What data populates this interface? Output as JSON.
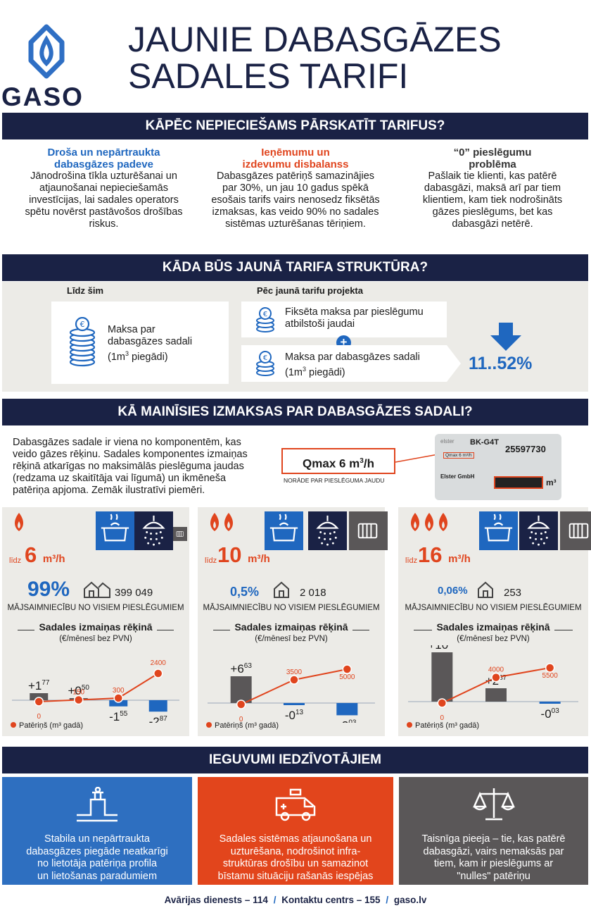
{
  "header": {
    "logo_text": "GASO",
    "title_line1": "JAUNIE DABASGĀZES",
    "title_line2": "SADALES TARIFI"
  },
  "section1": {
    "title": "KĀPĒC NEPIECIEŠAMS PĀRSKATĪT TARIFUS?",
    "cols": [
      {
        "heading": "Droša un nepārtraukta dabasgāzes padeve",
        "text": "Jānodrošina tīkla uzturēšanai un atjaunošanai nepieciešamās investīcijas, lai sadales operators spētu novērst pastāvošos drošības riskus.",
        "color": "#1f67bf"
      },
      {
        "heading": "Ieņēmumu un izdevumu disbalanss",
        "text": "Dabasgāzes patēriņš samazinājies par 30%, un jau 10 gadus spēkā esošais tarifs vairs nenosedz fiksētās izmaksas,  kas veido 90% no sadales sistēmas uzturēšanas tēriņiem.",
        "color": "#e0451e"
      },
      {
        "heading": "“0” pieslēgumu problēma",
        "text": "Pašlaik tie klienti, kas patērē dabasgāzi, maksā arī par tiem klientiem, kam tiek nodrošināts gāzes pieslēgums, bet kas dabasgāzi netērē.",
        "color": "#333333"
      }
    ]
  },
  "section2": {
    "title": "KĀDA BŪS JAUNĀ TARIFA STRUKTŪRA?",
    "left_label": "Līdz šim",
    "right_label": "Pēc jaunā tarifu projekta",
    "old_box": {
      "line1": "Maksa par",
      "line2": "dabasgāzes sadali",
      "line3a": "(1m",
      "line3sup": "3",
      "line3b": " piegādi)"
    },
    "new_box1": {
      "line1": "Fiksēta maksa par pieslēgumu",
      "line2": "atbilstoši jaudai"
    },
    "plus": "+",
    "new_box2": {
      "line1": "Maksa par dabasgāzes sadali",
      "line2a": "(1m",
      "line2sup": "3",
      "line2b": " piegādi)"
    },
    "reduction": "11..52%"
  },
  "section3": {
    "title": "KĀ MAINĪSIES IZMAKSAS PAR DABASGĀZES SADALI?",
    "intro": [
      "Dabasgāzes sadale ir viena no komponentēm, kas",
      "veido gāzes rēķinu. Sadales komponentes izmaiņas",
      "rēķinā atkarīgas no maksimālās pieslēguma jaudas",
      "(redzama uz skaitītāja vai līgumā) un ikmēneša",
      "patēriņa apjoma. Zemāk ilustratīvi piemēri."
    ],
    "qmax_a": "Qmax 6 m",
    "qmax_sup": "3",
    "qmax_b": "/h",
    "qmax_note": "NORĀDE PAR PIESLĒGUMA JAUDU",
    "meter": {
      "brand": "elster",
      "model": "BK-G4T",
      "serial": "25597730",
      "qmax": "Qmax 6 m³/h",
      "maker": "Elster GmbH",
      "unit": "m³"
    }
  },
  "panels": [
    {
      "flames": 1,
      "lidz": "līdz",
      "num": "6",
      "unit": "m³/h",
      "pct": "99%",
      "count": "399 049",
      "households": "MĀJSAIMNIECĪBU NO VISIEM PIESLĒGUMIEM",
      "sub_head": "Sadales izmaiņas rēķinā",
      "sub_note": "(€/mēnesī bez PVN)",
      "legend": "Patēriņš (m³ gadā)",
      "bars": [
        {
          "main": "+1",
          "sup": "77",
          "value": 1.77
        },
        {
          "main": "+0",
          "sup": "50",
          "value": 0.5
        },
        {
          "main": "-1",
          "sup": "55",
          "value": -1.55
        },
        {
          "main": "-2",
          "sup": "87",
          "value": -2.87
        }
      ],
      "points": [
        "0",
        "150",
        "300",
        "2400"
      ]
    },
    {
      "flames": 2,
      "lidz": "līdz",
      "num": "10",
      "unit": "m³/h",
      "pct": "0,5%",
      "count": "2 018",
      "households": "MĀJSAIMNIECĪBU NO VISIEM PIESLĒGUMIEM",
      "sub_head": "Sadales izmaiņas rēķinā",
      "sub_note": "(€/mēnesī bez PVN)",
      "legend": "Patēriņš (m³ gadā)",
      "bars": [
        {
          "main": "+6",
          "sup": "63",
          "value": 6.63
        },
        {
          "main": "-0",
          "sup": "13",
          "value": -0.13
        },
        {
          "main": "-3",
          "sup": "03",
          "value": -3.03
        }
      ],
      "points": [
        "0",
        "3500",
        "5000"
      ]
    },
    {
      "flames": 3,
      "lidz": "līdz",
      "num": "16",
      "unit": "m³/h",
      "pct": "0,06%",
      "count": "253",
      "households": "MĀJSAIMNIECĪBU NO VISIEM PIESLĒGUMIEM",
      "sub_head": "Sadales izmaiņas rēķinā",
      "sub_note": "(€/mēnesī bez PVN)",
      "legend": "Patēriņš (m³ gadā)",
      "bars": [
        {
          "main": "+10",
          "sup": "60",
          "value": 10.6
        },
        {
          "main": "+2",
          "sup": "87",
          "value": 2.87
        },
        {
          "main": "-0",
          "sup": "03",
          "value": -0.03
        }
      ],
      "points": [
        "0",
        "4000",
        "5500"
      ]
    }
  ],
  "section4": {
    "title": "IEGUVUMI IEDZĪVOTĀJIEM",
    "benefits": [
      {
        "lines": [
          "Stabila un nepārtraukta",
          "dabasgāzes piegāde neatkarīgi",
          "no lietotāja patēriņa profila",
          "un lietošanas paradumiem"
        ],
        "color": "#2e6fc0",
        "icon": "gas-pipe-icon"
      },
      {
        "lines": [
          "Sadales sistēmas atjaunošana un",
          "uzturēšana, nodrošinot infra-",
          "struktūras drošību un samazinot",
          "bīstamu situāciju rašanās iespējas"
        ],
        "color": "#e2451c",
        "icon": "emergency-van-icon"
      },
      {
        "lines": [
          "Taisnīga pieeja – tie, kas patērē",
          "dabasgāzi, vairs nemaksās par",
          "tiem, kam ir pieslēgums ar",
          "\"nulles\" patēriņu"
        ],
        "color": "#5a5758",
        "icon": "scales-icon"
      }
    ]
  },
  "footer": {
    "emergency": "Avārijas dienests – 114",
    "sep": "/",
    "contact": "Kontaktu centrs – 155",
    "web": "gaso.lv"
  },
  "colors": {
    "navy": "#1a2245",
    "blue": "#1f67bf",
    "orange": "#e0451e",
    "gray": "#5a5758",
    "bg": "#ecebe7"
  }
}
